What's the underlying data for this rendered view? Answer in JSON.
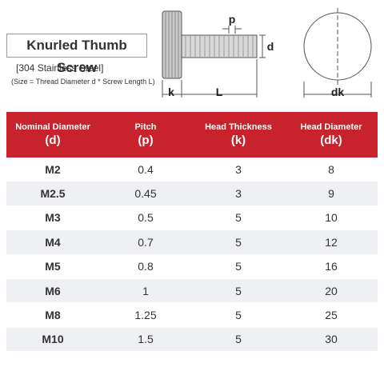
{
  "header": {
    "title": "Knurled Thumb Screw",
    "material": "[304 Stainless Steel]",
    "size_note": "(Size = Thread Diameter d * Screw Length L)"
  },
  "diagram": {
    "labels": {
      "pitch": "p",
      "diameter": "d",
      "head_thickness": "k",
      "length": "L",
      "head_diameter": "dk"
    }
  },
  "table": {
    "columns": [
      {
        "name": "Nominal Diameter",
        "symbol": "(d)"
      },
      {
        "name": "Pitch",
        "symbol": "(p)"
      },
      {
        "name": "Head Thickness",
        "symbol": "(k)"
      },
      {
        "name": "Head Diameter",
        "symbol": "(dk)"
      }
    ],
    "rows": [
      [
        "M2",
        "0.4",
        "3",
        "8"
      ],
      [
        "M2.5",
        "0.45",
        "3",
        "9"
      ],
      [
        "M3",
        "0.5",
        "5",
        "10"
      ],
      [
        "M4",
        "0.7",
        "5",
        "12"
      ],
      [
        "M5",
        "0.8",
        "5",
        "16"
      ],
      [
        "M6",
        "1",
        "5",
        "20"
      ],
      [
        "M8",
        "1.25",
        "5",
        "25"
      ],
      [
        "M10",
        "1.5",
        "5",
        "30"
      ]
    ]
  }
}
